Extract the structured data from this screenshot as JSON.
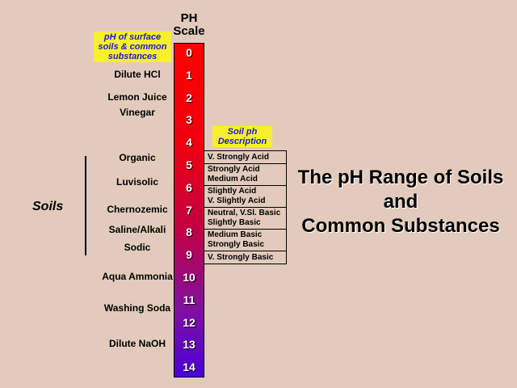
{
  "header": {
    "ph_line1": "PH",
    "ph_line2": "Scale",
    "substances_label": [
      "pH of surface",
      "soils & common",
      "substances"
    ],
    "soil_desc_label": [
      "Soil ph",
      "Description"
    ]
  },
  "scale": {
    "ticks": [
      "0",
      "1",
      "2",
      "3",
      "4",
      "5",
      "6",
      "7",
      "8",
      "9",
      "10",
      "11",
      "12",
      "13",
      "14"
    ]
  },
  "substances": [
    {
      "ph": 1,
      "label": "Dilute HCl"
    },
    {
      "ph": 2,
      "label": "Lemon Juice"
    },
    {
      "ph": 2.7,
      "label": "Vinegar"
    },
    {
      "ph": 4.7,
      "label": "Organic"
    },
    {
      "ph": 5.8,
      "label": "Luvisolic"
    },
    {
      "ph": 7,
      "label": "Chernozemic"
    },
    {
      "ph": 7.9,
      "label": "Saline/Alkali"
    },
    {
      "ph": 8.7,
      "label": "Sodic"
    },
    {
      "ph": 10,
      "label": "Aqua Ammonia"
    },
    {
      "ph": 11.4,
      "label": "Washing Soda"
    },
    {
      "ph": 13,
      "label": "Dilute NaOH"
    }
  ],
  "soils_label": "Soils",
  "soil_descriptions": [
    [
      "V. Strongly Acid"
    ],
    [
      "Strongly Acid",
      "Medium Acid"
    ],
    [
      "Slightly Acid",
      "V. Slightly Acid"
    ],
    [
      "Neutral, V.Sl. Basic",
      "Slightly Basic"
    ],
    [
      "Medium Basic",
      "Strongly Basic"
    ],
    [
      "V. Strongly Basic"
    ]
  ],
  "title": [
    "The pH Range of Soils",
    "and",
    "Common Substances"
  ],
  "colors": {
    "background": "#e2cbbc",
    "label_bg": "#f7ef2f",
    "label_text": "#1a19d6",
    "scale_top": "#ff0000",
    "scale_bottom": "#4a00d8"
  }
}
